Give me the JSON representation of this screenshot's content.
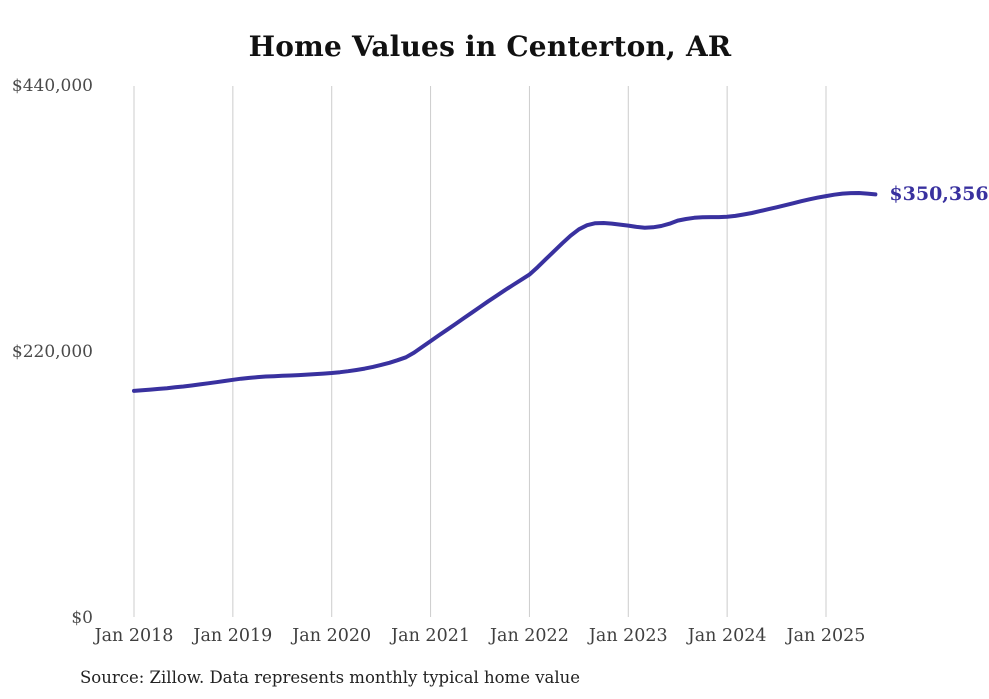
{
  "chart_data": {
    "type": "line",
    "title": "Home Values in Centerton, AR",
    "series_name": "Monthly typical home value",
    "end_label": "$350,356",
    "end_value": 350356,
    "source": "Source: Zillow. Data represents monthly typical home value",
    "line_color": "#39319f",
    "grid_color": "#cccccc",
    "grid": "vertical-only",
    "legend": "none",
    "ylim": [
      0,
      440000
    ],
    "y_tick_labels": [
      "$440,000",
      "$220,000",
      "$0"
    ],
    "y_tick_values": [
      440000,
      220000,
      0
    ],
    "x_tick_labels": [
      "Jan 2018",
      "Jan 2019",
      "Jan 2020",
      "Jan 2021",
      "Jan 2022",
      "Jan 2023",
      "Jan 2024",
      "Jan 2025"
    ],
    "x_tick_month_indices": [
      0,
      12,
      24,
      36,
      48,
      60,
      72,
      84
    ],
    "x": [
      "2018-01",
      "2018-02",
      "2018-03",
      "2018-04",
      "2018-05",
      "2018-06",
      "2018-07",
      "2018-08",
      "2018-09",
      "2018-10",
      "2018-11",
      "2018-12",
      "2019-01",
      "2019-02",
      "2019-03",
      "2019-04",
      "2019-05",
      "2019-06",
      "2019-07",
      "2019-08",
      "2019-09",
      "2019-10",
      "2019-11",
      "2019-12",
      "2020-01",
      "2020-02",
      "2020-03",
      "2020-04",
      "2020-05",
      "2020-06",
      "2020-07",
      "2020-08",
      "2020-09",
      "2020-10",
      "2020-11",
      "2020-12",
      "2021-01",
      "2021-02",
      "2021-03",
      "2021-04",
      "2021-05",
      "2021-06",
      "2021-07",
      "2021-08",
      "2021-09",
      "2021-10",
      "2021-11",
      "2021-12",
      "2022-01",
      "2022-02",
      "2022-03",
      "2022-04",
      "2022-05",
      "2022-06",
      "2022-07",
      "2022-08",
      "2022-09",
      "2022-10",
      "2022-11",
      "2022-12",
      "2023-01",
      "2023-02",
      "2023-03",
      "2023-04",
      "2023-05",
      "2023-06",
      "2023-07",
      "2023-08",
      "2023-09",
      "2023-10",
      "2023-11",
      "2023-12",
      "2024-01",
      "2024-02",
      "2024-03",
      "2024-04",
      "2024-05",
      "2024-06",
      "2024-07",
      "2024-08",
      "2024-09",
      "2024-10",
      "2024-11",
      "2024-12",
      "2025-01",
      "2025-02",
      "2025-03",
      "2025-04",
      "2025-05",
      "2025-06",
      "2025-07"
    ],
    "values": [
      187800,
      188300,
      188900,
      189500,
      190100,
      190800,
      191500,
      192300,
      193200,
      194100,
      195000,
      196000,
      197000,
      197900,
      198600,
      199200,
      199700,
      200000,
      200300,
      200600,
      200900,
      201300,
      201700,
      202100,
      202600,
      203300,
      204100,
      205100,
      206300,
      207700,
      209300,
      211100,
      213200,
      215600,
      219500,
      224200,
      229000,
      233700,
      238400,
      243100,
      247800,
      252500,
      257200,
      261900,
      266500,
      271000,
      275400,
      279700,
      284000,
      290200,
      296800,
      303400,
      310000,
      316200,
      321500,
      324900,
      326500,
      326700,
      326200,
      325400,
      324500,
      323500,
      322800,
      323100,
      324200,
      326100,
      328700,
      330000,
      331000,
      331400,
      331600,
      331600,
      331800,
      332600,
      333700,
      335000,
      336500,
      338100,
      339700,
      341300,
      343000,
      344700,
      346300,
      347700,
      348900,
      350100,
      351000,
      351400,
      351500,
      351000,
      350356
    ]
  }
}
